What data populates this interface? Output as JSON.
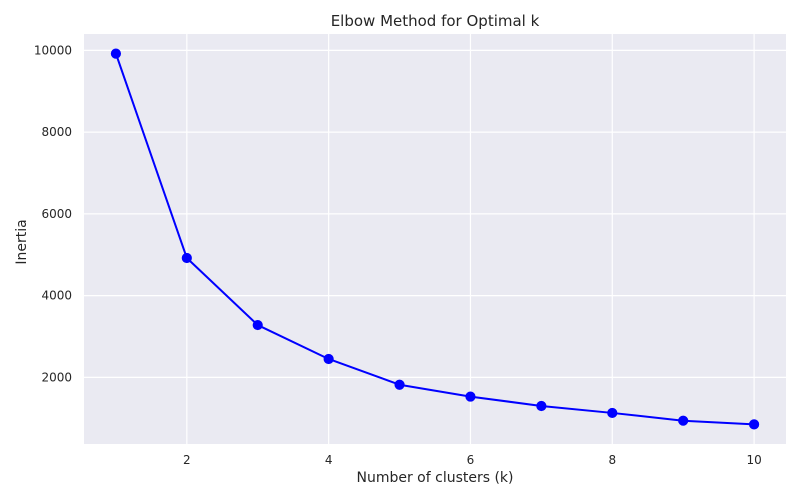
{
  "chart_data": {
    "type": "line",
    "title": "Elbow Method for Optimal k",
    "xlabel": "Number of clusters (k)",
    "ylabel": "Inertia",
    "x": [
      1,
      2,
      3,
      4,
      5,
      6,
      7,
      8,
      9,
      10
    ],
    "series": [
      {
        "values": [
          9920,
          4920,
          3280,
          2450,
          1820,
          1530,
          1300,
          1130,
          940,
          850
        ]
      }
    ],
    "xlim": [
      0.55,
      10.45
    ],
    "ylim": [
      370,
      10400
    ],
    "xticks": [
      "2",
      "4",
      "6",
      "8",
      "10"
    ],
    "yticks": [
      "2000",
      "4000",
      "6000",
      "8000",
      "10000"
    ],
    "grid": true,
    "line_color": "#0000ff",
    "marker_color": "#0000ff",
    "background_color": "#eaeaf2",
    "grid_color": "#ffffff"
  }
}
